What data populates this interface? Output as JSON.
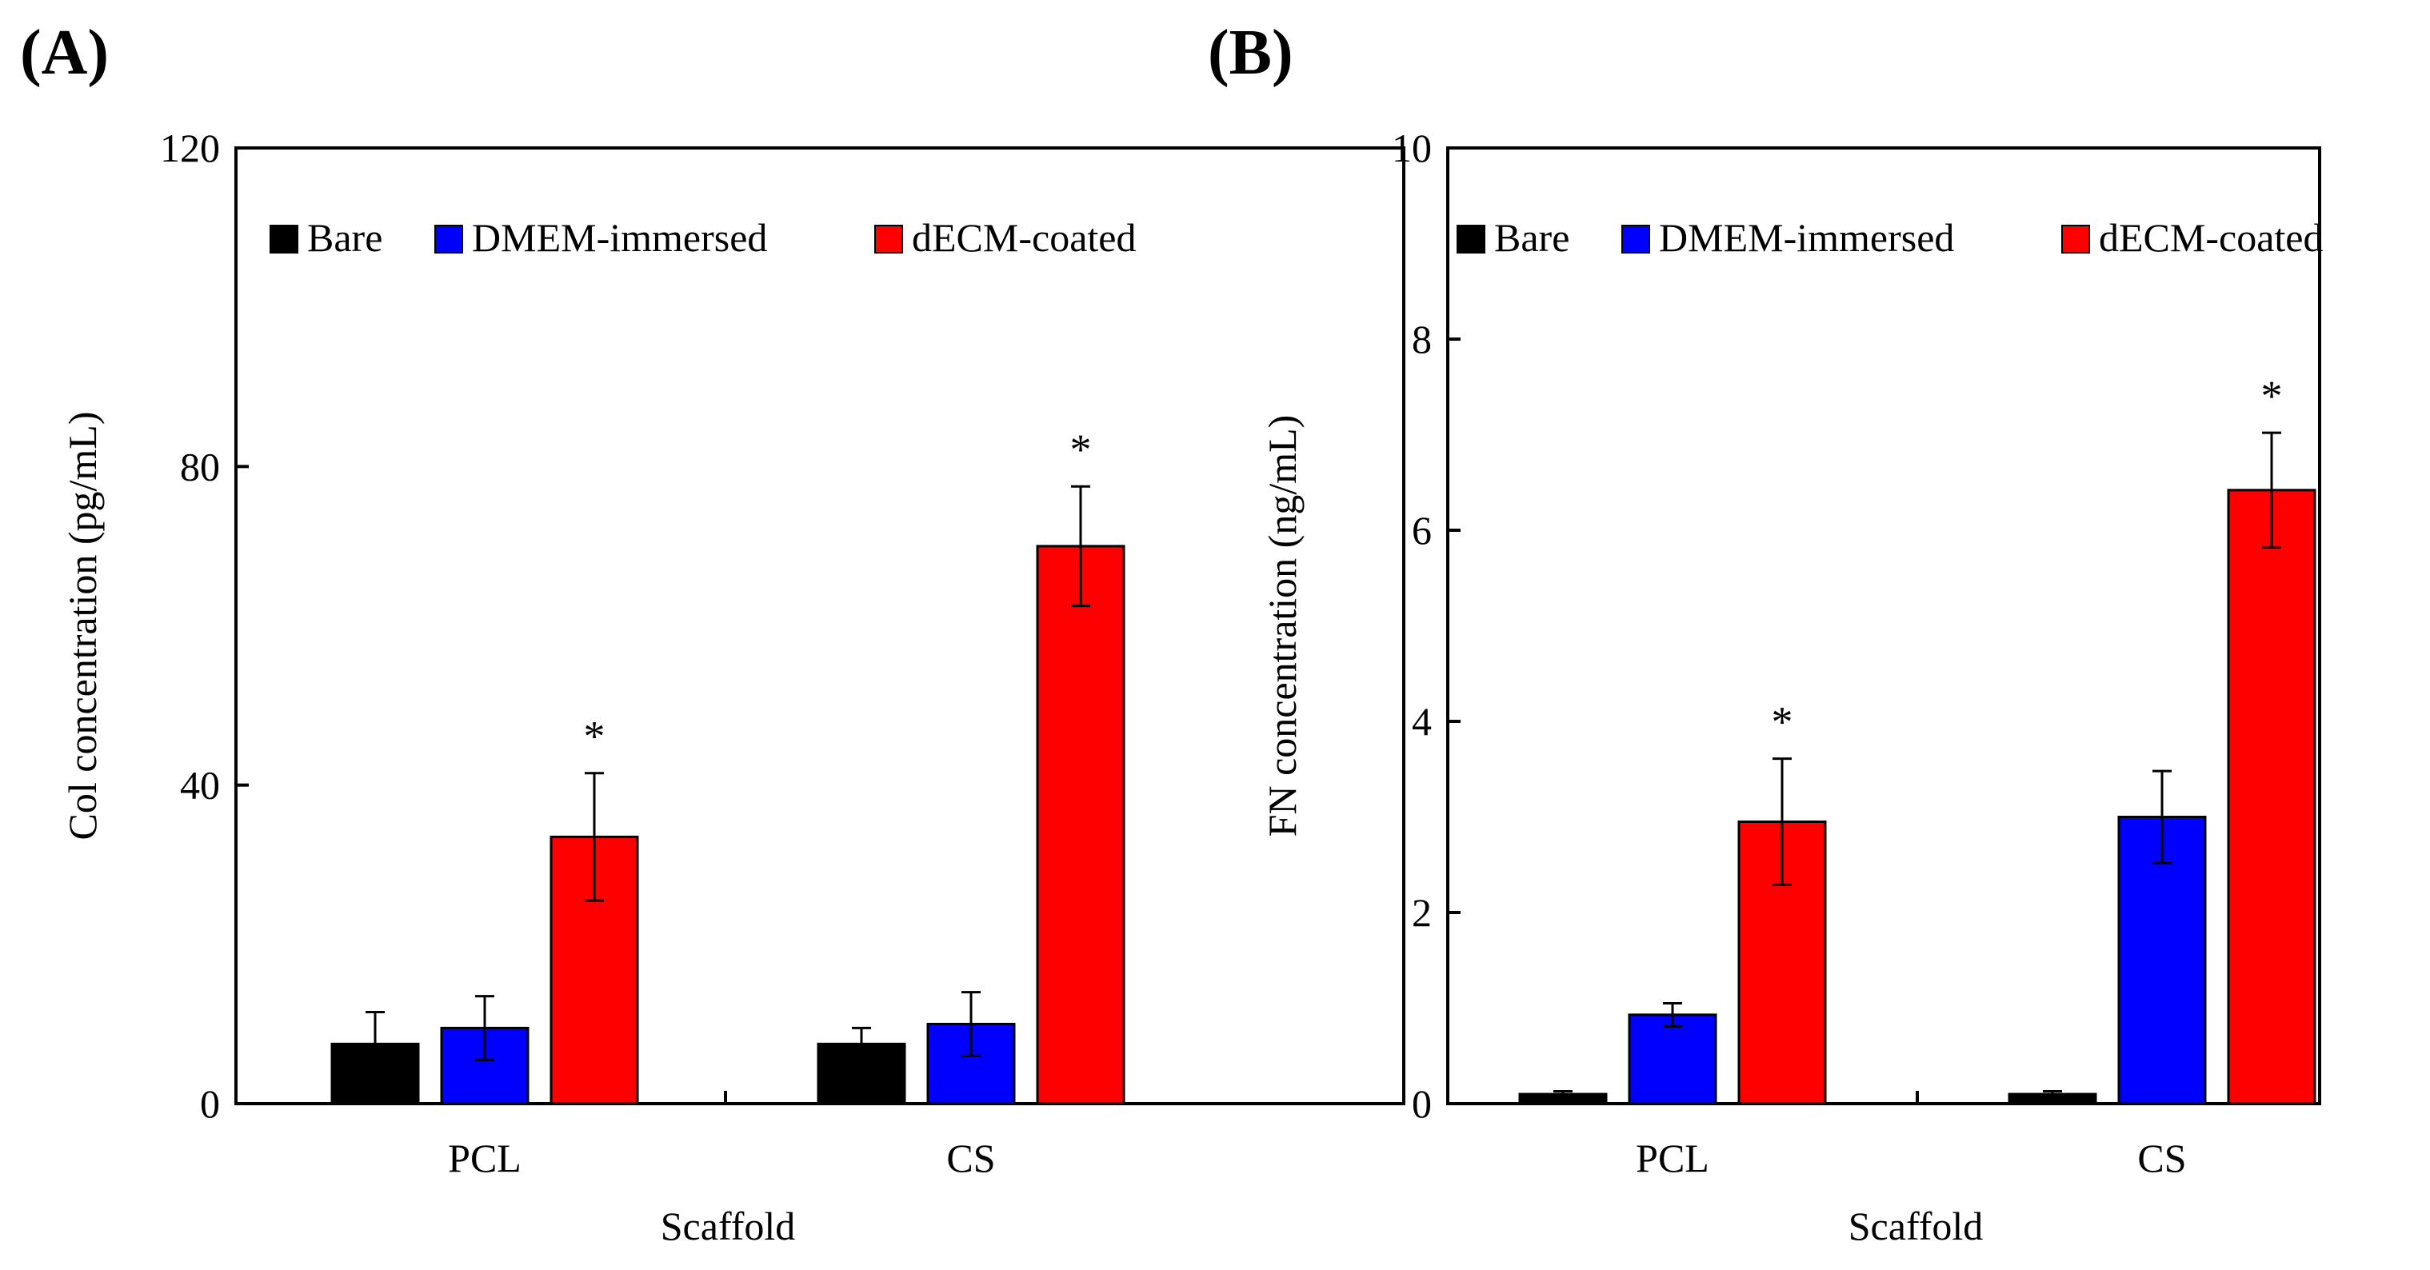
{
  "chart_data": [
    {
      "type": "bar",
      "panel_label": "(A)",
      "categories": [
        "PCL",
        "CS"
      ],
      "series": [
        {
          "name": "Bare",
          "color": "#000000",
          "values": [
            7.5,
            7.5
          ],
          "errors": [
            4.0,
            2.0
          ]
        },
        {
          "name": "DMEM-immersed",
          "color": "#0000ff",
          "values": [
            9.5,
            10.0
          ],
          "errors": [
            4.0,
            4.0
          ]
        },
        {
          "name": "dECM-coated",
          "color": "#ff0000",
          "values": [
            33.5,
            70.0
          ],
          "errors": [
            8.0,
            7.5
          ]
        }
      ],
      "annotations": [
        {
          "category": "PCL",
          "series": "dECM-coated",
          "text": "*"
        },
        {
          "category": "CS",
          "series": "dECM-coated",
          "text": "*"
        }
      ],
      "xlabel": "Scaffold",
      "ylabel": "Col concentration (pg/mL)",
      "ylim": [
        0,
        120
      ],
      "yticks": [
        "0",
        "40",
        "80",
        "120"
      ],
      "grid": false,
      "legend": "top"
    },
    {
      "type": "bar",
      "panel_label": "(B)",
      "categories": [
        "PCL",
        "CS"
      ],
      "series": [
        {
          "name": "Bare",
          "color": "#000000",
          "values": [
            0.1,
            0.1
          ],
          "errors": [
            0.03,
            0.03
          ]
        },
        {
          "name": "DMEM-immersed",
          "color": "#0000ff",
          "values": [
            0.93,
            3.0
          ],
          "errors": [
            0.12,
            0.48
          ]
        },
        {
          "name": "dECM-coated",
          "color": "#ff0000",
          "values": [
            2.95,
            6.42
          ],
          "errors": [
            0.66,
            0.6
          ]
        }
      ],
      "annotations": [
        {
          "category": "PCL",
          "series": "dECM-coated",
          "text": "*"
        },
        {
          "category": "CS",
          "series": "dECM-coated",
          "text": "*"
        }
      ],
      "xlabel": "Scaffold",
      "ylabel": "FN concentration (ng/mL)",
      "ylim": [
        0,
        10
      ],
      "yticks": [
        "0",
        "2",
        "4",
        "6",
        "8",
        "10"
      ],
      "grid": false,
      "legend": "top"
    }
  ]
}
